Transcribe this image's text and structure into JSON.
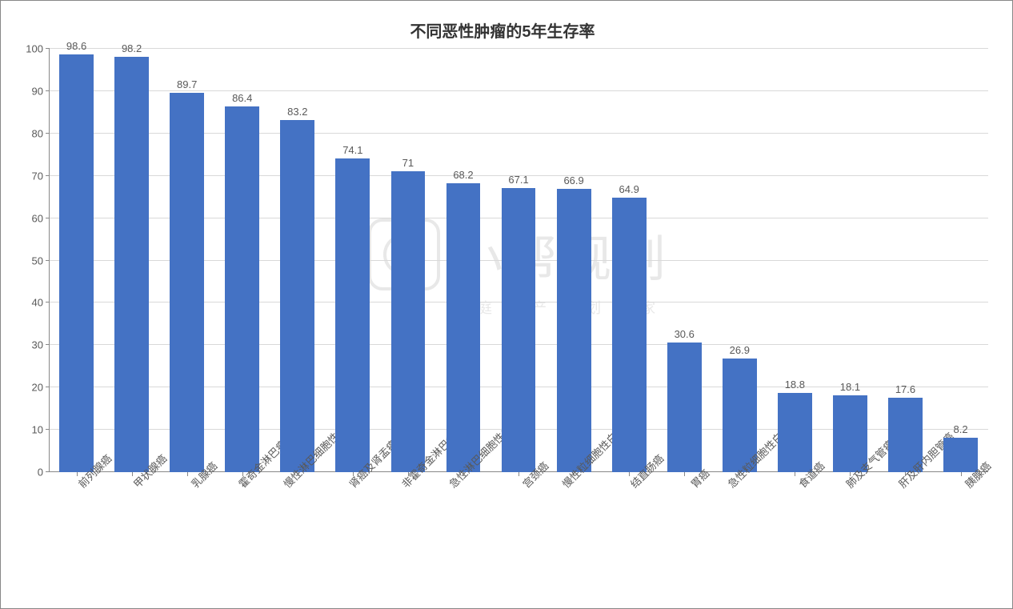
{
  "chart": {
    "type": "bar",
    "title": "不同恶性肿瘤的5年生存率",
    "title_fontsize": 20,
    "bar_color": "#4472c4",
    "background_color": "#ffffff",
    "grid_color": "#d9d9d9",
    "axis_color": "#888888",
    "text_color": "#595959",
    "label_fontsize": 13,
    "bar_width_ratio": 0.62,
    "ylim": [
      0,
      100
    ],
    "ytick_step": 10,
    "yticks": [
      0,
      10,
      20,
      30,
      40,
      50,
      60,
      70,
      80,
      90,
      100
    ],
    "categories": [
      "前列腺癌",
      "甲状腺癌",
      "乳腺癌",
      "霍奇金淋巴瘤",
      "慢性淋巴细胞性白血病",
      "肾癌及肾盂癌",
      "非霍奇金淋巴瘤",
      "急性淋巴细胞性白血病",
      "宫颈癌",
      "慢性粒细胞性白血病",
      "结直肠癌",
      "胃癌",
      "急性粒细胞性白血病",
      "食道癌",
      "肺及支气管癌",
      "肝及肝内胆管癌",
      "胰腺癌"
    ],
    "values": [
      98.6,
      98.2,
      89.7,
      86.4,
      83.2,
      74.1,
      71,
      68.2,
      67.1,
      66.9,
      64.9,
      30.6,
      26.9,
      18.8,
      18.1,
      17.6,
      8.2
    ],
    "x_label_rotation": -45
  },
  "watermark": {
    "main": "小帮规划",
    "sub": "家庭资产规划专家",
    "color": "#e8e8e8"
  }
}
